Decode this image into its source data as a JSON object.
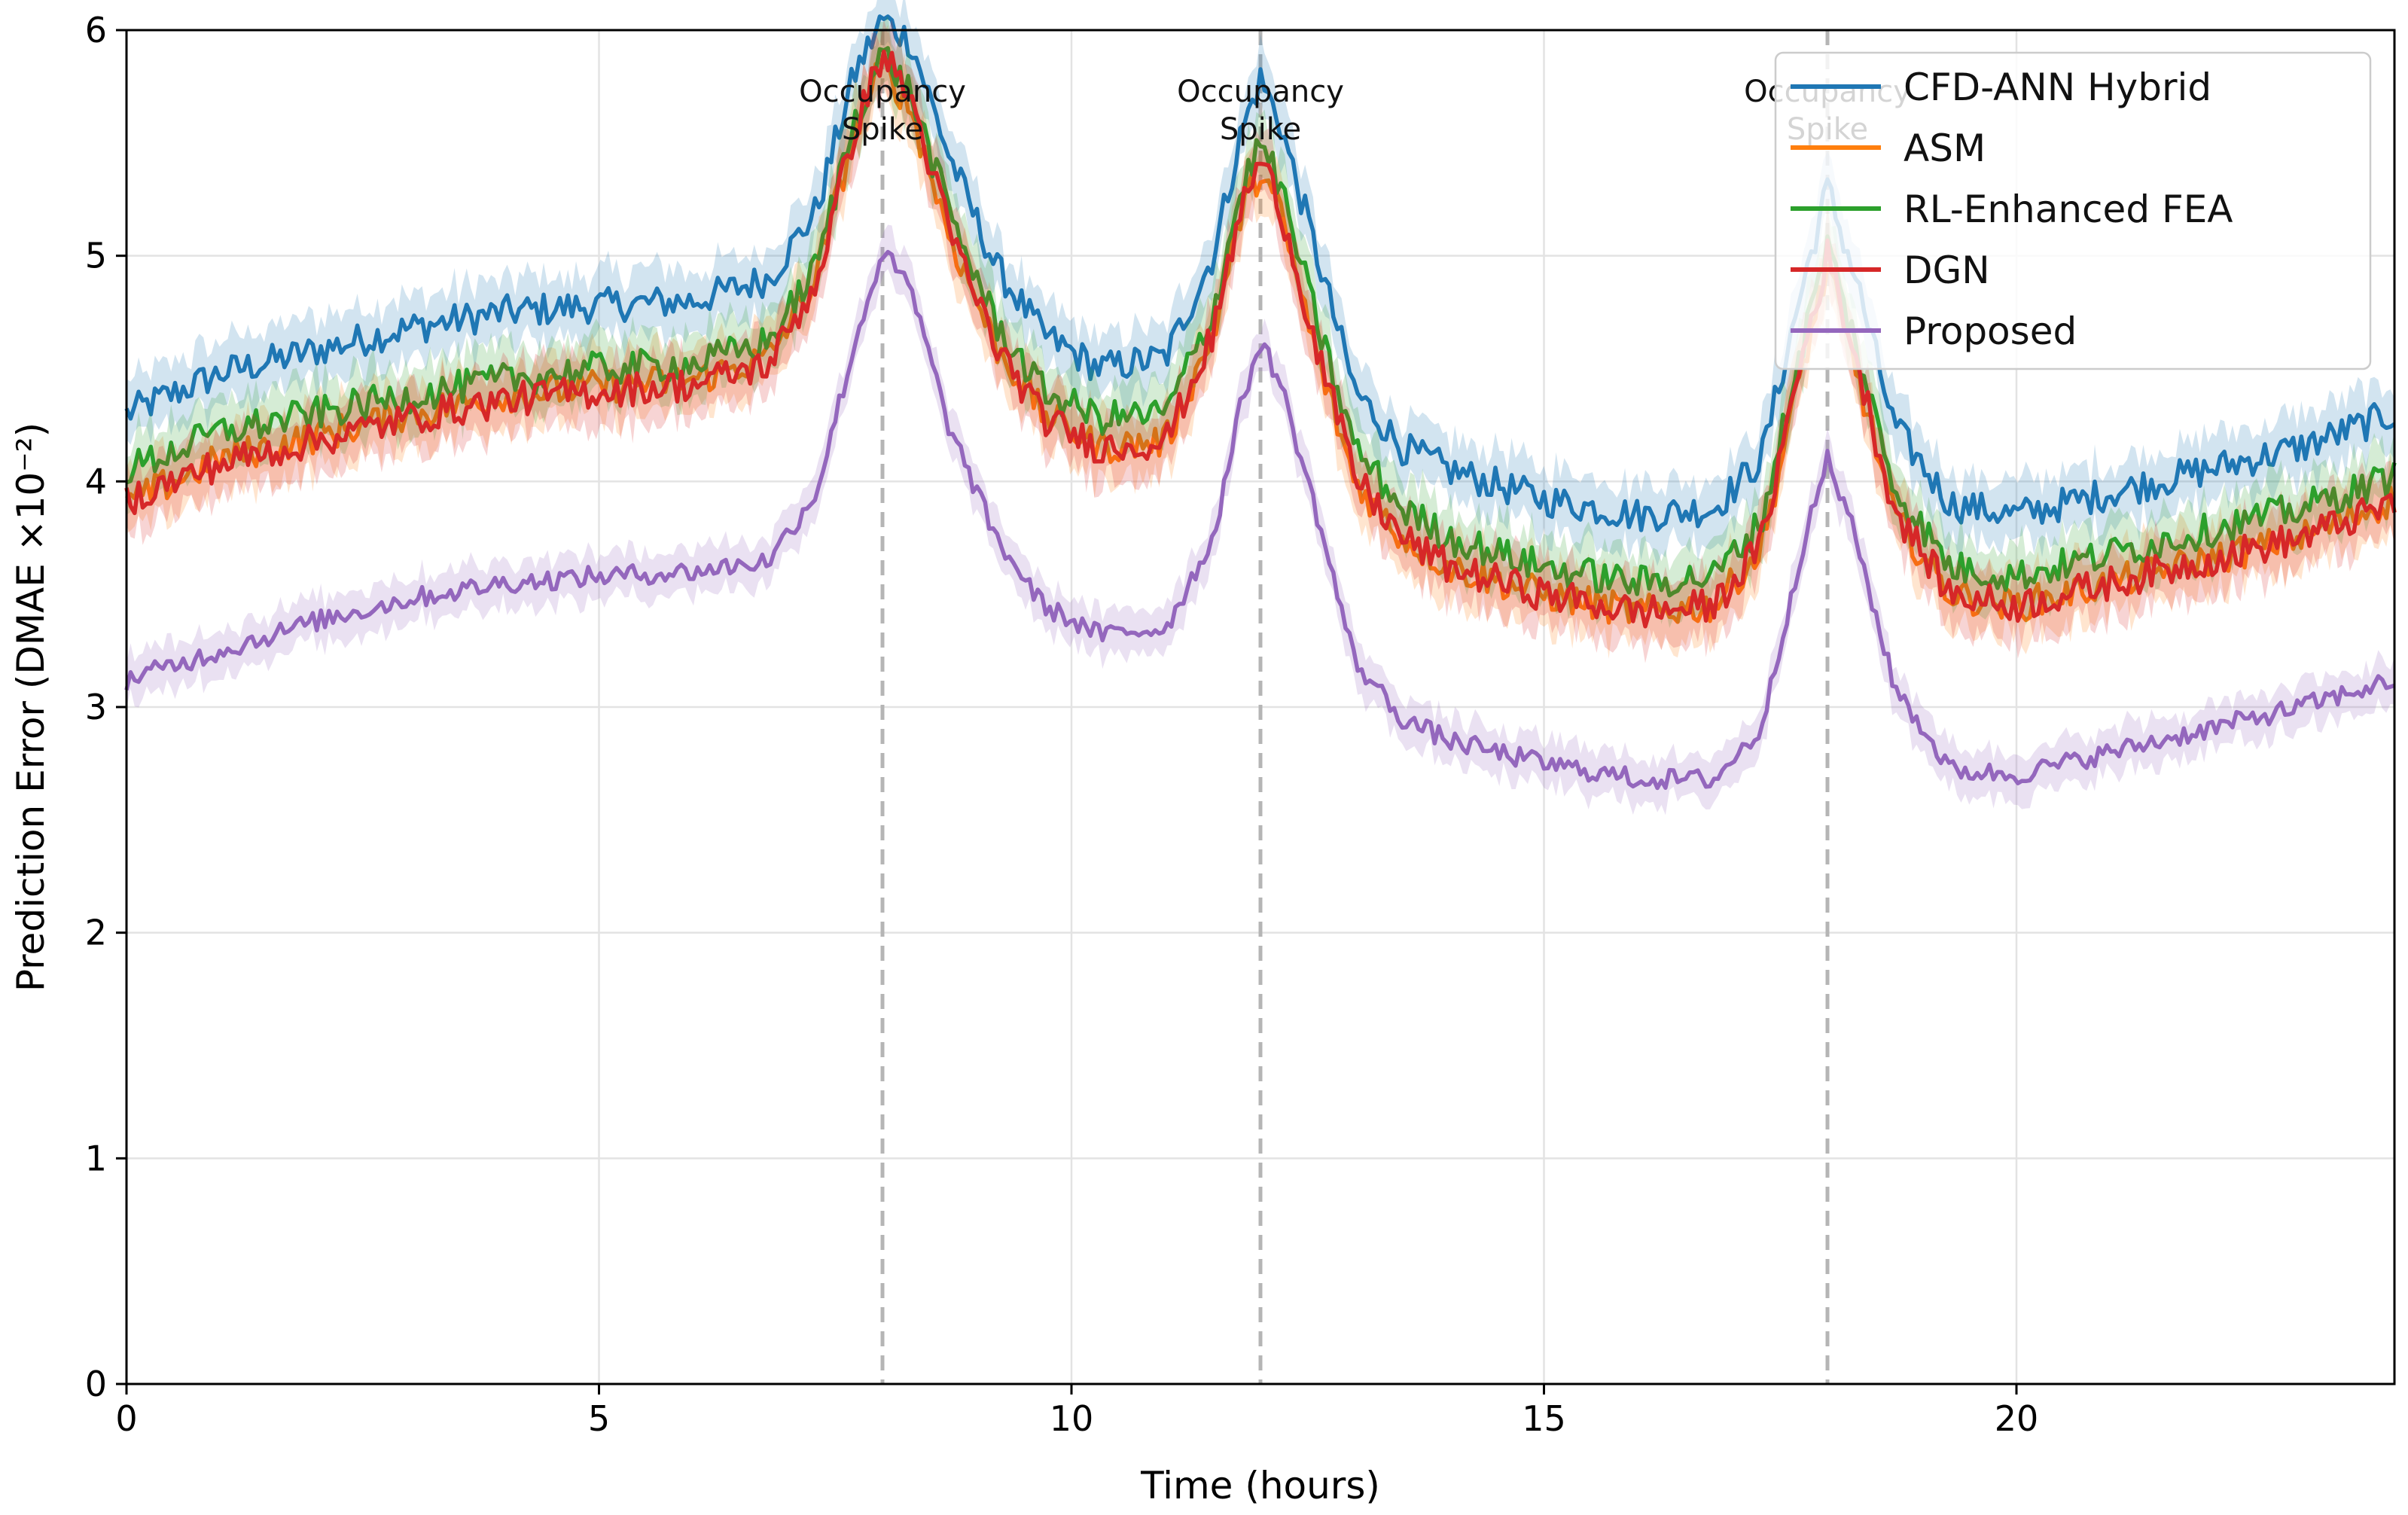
{
  "chart_data": {
    "type": "line",
    "title": "",
    "xlabel": "Time (hours)",
    "ylabel": "Prediction Error (DMAE ×10⁻²)",
    "xlim": [
      0,
      24
    ],
    "ylim": [
      0,
      6
    ],
    "xticks": [
      0,
      5,
      10,
      15,
      20
    ],
    "xtick_labels": [
      "0",
      "5",
      "10",
      "15",
      "20"
    ],
    "yticks": [
      0,
      1,
      2,
      3,
      4,
      5,
      6
    ],
    "ytick_labels": [
      "0",
      "1",
      "2",
      "3",
      "4",
      "5",
      "6"
    ],
    "grid": true,
    "legend_position": "top-right",
    "events": [
      {
        "x": 8,
        "label_line1": "Occupancy",
        "label_line2": "Spike"
      },
      {
        "x": 12,
        "label_line1": "Occupancy",
        "label_line2": "Spike"
      },
      {
        "x": 18,
        "label_line1": "Occupancy",
        "label_line2": "Spike"
      }
    ],
    "x": [
      0,
      1,
      2,
      3,
      4,
      5,
      6,
      6.8,
      7.3,
      7.7,
      8,
      8.3,
      8.7,
      9.2,
      9.7,
      10.3,
      11,
      11.5,
      11.8,
      12,
      12.2,
      12.6,
      13,
      13.5,
      14,
      15,
      16,
      16.8,
      17.3,
      17.7,
      18,
      18.3,
      18.7,
      19.3,
      20,
      21,
      22,
      23,
      24
    ],
    "series": [
      {
        "name": "CFD-ANN Hybrid",
        "color": "#1f77b4",
        "values": [
          4.3,
          4.48,
          4.58,
          4.68,
          4.75,
          4.78,
          4.8,
          4.9,
          5.2,
          5.8,
          6.05,
          5.95,
          5.45,
          4.95,
          4.65,
          4.5,
          4.55,
          5.0,
          5.55,
          5.78,
          5.6,
          5.0,
          4.4,
          4.15,
          4.05,
          3.92,
          3.85,
          3.88,
          4.1,
          4.8,
          5.3,
          4.9,
          4.25,
          3.9,
          3.85,
          3.95,
          4.05,
          4.15,
          4.3
        ]
      },
      {
        "name": "ASM",
        "color": "#ff7f0e",
        "values": [
          3.9,
          4.1,
          4.2,
          4.3,
          4.38,
          4.42,
          4.45,
          4.55,
          4.9,
          5.55,
          5.85,
          5.65,
          5.1,
          4.6,
          4.3,
          4.15,
          4.18,
          4.65,
          5.2,
          5.38,
          5.2,
          4.55,
          4.0,
          3.75,
          3.62,
          3.5,
          3.42,
          3.45,
          3.7,
          4.45,
          4.95,
          4.5,
          3.85,
          3.5,
          3.45,
          3.55,
          3.65,
          3.75,
          3.92
        ]
      },
      {
        "name": "RL-Enhanced FEA",
        "color": "#2ca02c",
        "values": [
          4.05,
          4.22,
          4.3,
          4.38,
          4.45,
          4.5,
          4.52,
          4.62,
          4.95,
          5.6,
          5.9,
          5.72,
          5.2,
          4.7,
          4.4,
          4.28,
          4.3,
          4.75,
          5.3,
          5.5,
          5.32,
          4.7,
          4.15,
          3.88,
          3.75,
          3.62,
          3.55,
          3.58,
          3.82,
          4.55,
          5.05,
          4.6,
          3.98,
          3.62,
          3.58,
          3.68,
          3.78,
          3.88,
          4.02
        ]
      },
      {
        "name": "DGN",
        "color": "#d62728",
        "values": [
          3.92,
          4.08,
          4.18,
          4.28,
          4.36,
          4.4,
          4.43,
          4.52,
          4.88,
          5.55,
          5.9,
          5.7,
          5.12,
          4.6,
          4.28,
          4.15,
          4.18,
          4.65,
          5.22,
          5.42,
          5.24,
          4.58,
          4.02,
          3.75,
          3.62,
          3.5,
          3.42,
          3.45,
          3.72,
          4.5,
          5.0,
          4.55,
          3.88,
          3.5,
          3.45,
          3.55,
          3.65,
          3.75,
          3.9
        ]
      },
      {
        "name": "Proposed",
        "color": "#9467bd",
        "values": [
          3.12,
          3.25,
          3.38,
          3.48,
          3.55,
          3.58,
          3.6,
          3.65,
          3.95,
          4.6,
          5.02,
          4.85,
          4.25,
          3.75,
          3.45,
          3.32,
          3.35,
          3.75,
          4.35,
          4.62,
          4.45,
          3.85,
          3.2,
          2.95,
          2.85,
          2.75,
          2.68,
          2.68,
          2.9,
          3.65,
          4.1,
          3.75,
          3.1,
          2.72,
          2.7,
          2.8,
          2.9,
          3.0,
          3.12
        ]
      }
    ]
  }
}
